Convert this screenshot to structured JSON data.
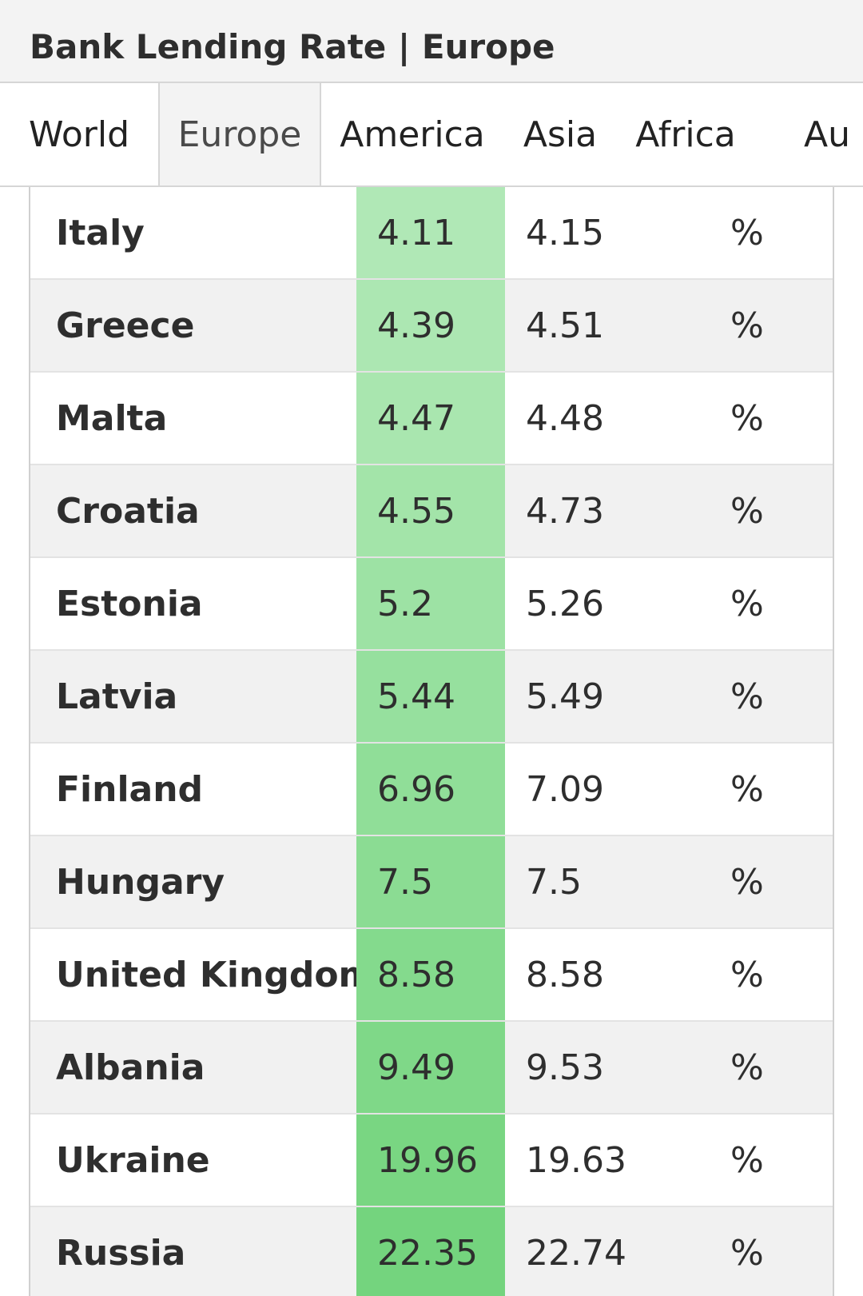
{
  "header": {
    "title": "Bank Lending Rate | Europe"
  },
  "tabs": [
    {
      "label": "World",
      "active": false
    },
    {
      "label": "Europe",
      "active": true
    },
    {
      "label": "America",
      "active": false
    },
    {
      "label": "Asia",
      "active": false
    },
    {
      "label": "Africa",
      "active": false
    },
    {
      "label": "Au",
      "active": false
    }
  ],
  "table": {
    "rows": [
      {
        "country": "Italy",
        "last": "4.11",
        "previous": "4.15",
        "unit": "%",
        "highlight": "#b0e8b6"
      },
      {
        "country": "Greece",
        "last": "4.39",
        "previous": "4.51",
        "unit": "%",
        "highlight": "#ace7b2"
      },
      {
        "country": "Malta",
        "last": "4.47",
        "previous": "4.48",
        "unit": "%",
        "highlight": "#a9e6af"
      },
      {
        "country": "Croatia",
        "last": "4.55",
        "previous": "4.73",
        "unit": "%",
        "highlight": "#a3e4a9"
      },
      {
        "country": "Estonia",
        "last": "5.2",
        "previous": "5.26",
        "unit": "%",
        "highlight": "#9de2a4"
      },
      {
        "country": "Latvia",
        "last": "5.44",
        "previous": "5.49",
        "unit": "%",
        "highlight": "#96e09e"
      },
      {
        "country": "Finland",
        "last": "6.96",
        "previous": "7.09",
        "unit": "%",
        "highlight": "#90de98"
      },
      {
        "country": "Hungary",
        "last": "7.5",
        "previous": "7.5",
        "unit": "%",
        "highlight": "#8bdc93"
      },
      {
        "country": "United Kingdom",
        "last": "8.58",
        "previous": "8.58",
        "unit": "%",
        "highlight": "#84da8d"
      },
      {
        "country": "Albania",
        "last": "9.49",
        "previous": "9.53",
        "unit": "%",
        "highlight": "#7fd888"
      },
      {
        "country": "Ukraine",
        "last": "19.96",
        "previous": "19.63",
        "unit": "%",
        "highlight": "#79d682"
      },
      {
        "country": "Russia",
        "last": "22.35",
        "previous": "22.74",
        "unit": "%",
        "highlight": "#74d47e"
      }
    ]
  }
}
